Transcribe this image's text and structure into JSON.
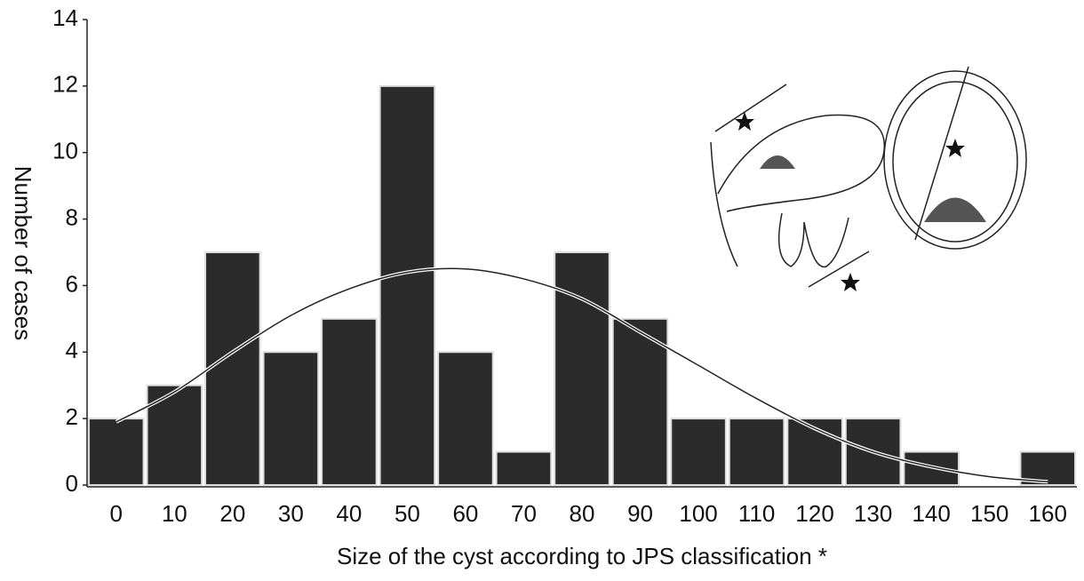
{
  "chart_data": {
    "type": "bar",
    "x_label": "Size of the cyst according to JPS classification *",
    "y_label": "Number of cases",
    "categories": [
      "0",
      "10",
      "20",
      "30",
      "40",
      "50",
      "60",
      "70",
      "80",
      "90",
      "100",
      "110",
      "120",
      "130",
      "140",
      "150",
      "160"
    ],
    "values": [
      2,
      3,
      7,
      4,
      5,
      12,
      4,
      1,
      7,
      5,
      2,
      2,
      2,
      2,
      1,
      0,
      1
    ],
    "curve_values": [
      1.9,
      2.8,
      4.0,
      5.1,
      5.9,
      6.4,
      6.5,
      6.2,
      5.6,
      4.6,
      3.6,
      2.6,
      1.7,
      1.0,
      0.55,
      0.25,
      0.1
    ],
    "color": "#2b2b2b",
    "ylim": [
      0,
      14
    ],
    "yticks": [
      0,
      2,
      4,
      6,
      8,
      10,
      12,
      14
    ]
  }
}
